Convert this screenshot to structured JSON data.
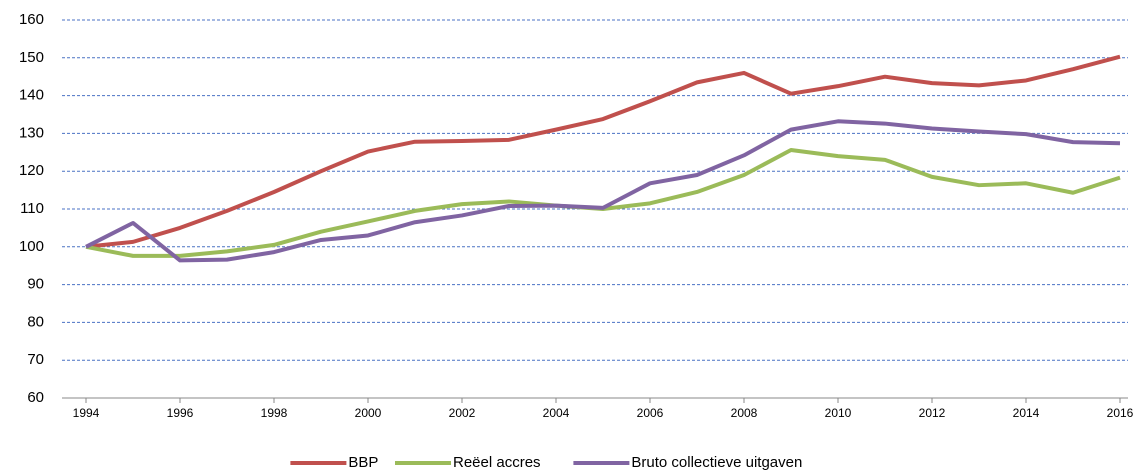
{
  "chart_data": {
    "type": "line",
    "x": [
      1994,
      1995,
      1996,
      1997,
      1998,
      1999,
      2000,
      2001,
      2002,
      2003,
      2004,
      2005,
      2006,
      2007,
      2008,
      2009,
      2010,
      2011,
      2012,
      2013,
      2014,
      2015,
      2016
    ],
    "series": [
      {
        "name": "BBP",
        "color": "#c0504d",
        "values": [
          100,
          101.3,
          105,
          109.5,
          114.5,
          120,
          125.2,
          127.8,
          128,
          128.3,
          131,
          133.8,
          138.5,
          143.5,
          146,
          140.5,
          142.5,
          145,
          143.3,
          142.7,
          144,
          147,
          150.3
        ]
      },
      {
        "name": "Reëel accres",
        "color": "#9bbb59",
        "values": [
          100,
          97.6,
          97.6,
          98.8,
          100.5,
          104,
          106.7,
          109.5,
          111.3,
          112,
          110.9,
          110,
          111.5,
          114.5,
          119,
          125.6,
          124,
          123,
          118.5,
          116.3,
          116.8,
          114.3,
          118.3
        ]
      },
      {
        "name": "Bruto collectieve uitgaven",
        "color": "#8064a2",
        "values": [
          100,
          106.3,
          96.4,
          96.6,
          98.6,
          101.8,
          103,
          106.5,
          108.3,
          110.8,
          110.9,
          110.3,
          116.8,
          119,
          124.2,
          131,
          133.2,
          132.6,
          131.3,
          130.5,
          129.8,
          127.7,
          127.4
        ]
      }
    ],
    "xlim": [
      1994,
      2016
    ],
    "xticks": [
      1994,
      1996,
      1998,
      2000,
      2002,
      2004,
      2006,
      2008,
      2010,
      2012,
      2014,
      2016
    ],
    "ylim": [
      60,
      160
    ],
    "yticks": [
      60,
      70,
      80,
      90,
      100,
      110,
      120,
      130,
      140,
      150,
      160
    ],
    "grid": true,
    "legend": "bottom"
  }
}
